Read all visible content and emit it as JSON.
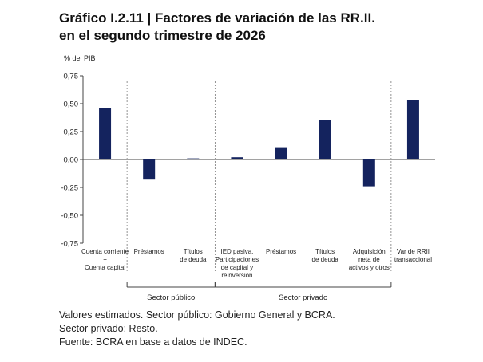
{
  "title_line1": "Gráfico I.2.11 | Factores de variación de las RR.II.",
  "title_line2": "en el segundo trimestre de 2026",
  "chart_data": {
    "type": "bar",
    "ylabel": "% del PIB",
    "ylim": [
      -0.75,
      0.75
    ],
    "yticks": [
      "0,75",
      "0,50",
      "0,25",
      "0,00",
      "-0,25",
      "-0,50",
      "-0,75"
    ],
    "ytick_values": [
      0.75,
      0.5,
      0.25,
      0,
      -0.25,
      -0.5,
      -0.75
    ],
    "categories": [
      [
        "Cuenta corriente",
        "+",
        "Cuenta capital"
      ],
      [
        "Préstamos"
      ],
      [
        "Títulos",
        "de deuda"
      ],
      [
        "IED pasiva.",
        "Participaciones",
        "de capital y",
        "reinversión"
      ],
      [
        "Préstamos"
      ],
      [
        "Títulos",
        "de deuda"
      ],
      [
        "Adquisición",
        "neta de",
        "activos y otros"
      ],
      [
        "Var de RRII",
        "transaccional"
      ]
    ],
    "values": [
      0.46,
      -0.18,
      0.01,
      0.02,
      0.11,
      0.35,
      -0.24,
      0.53
    ],
    "bar_color": "#14235e",
    "groups": [
      {
        "label": "Sector público",
        "from": 1,
        "to": 2
      },
      {
        "label": "Sector privado",
        "from": 3,
        "to": 6
      }
    ],
    "grid": false
  },
  "notes": [
    "Valores estimados. Sector público: Gobierno General y BCRA.",
    "Sector privado: Resto.",
    "Fuente: BCRA en base a datos de INDEC."
  ]
}
